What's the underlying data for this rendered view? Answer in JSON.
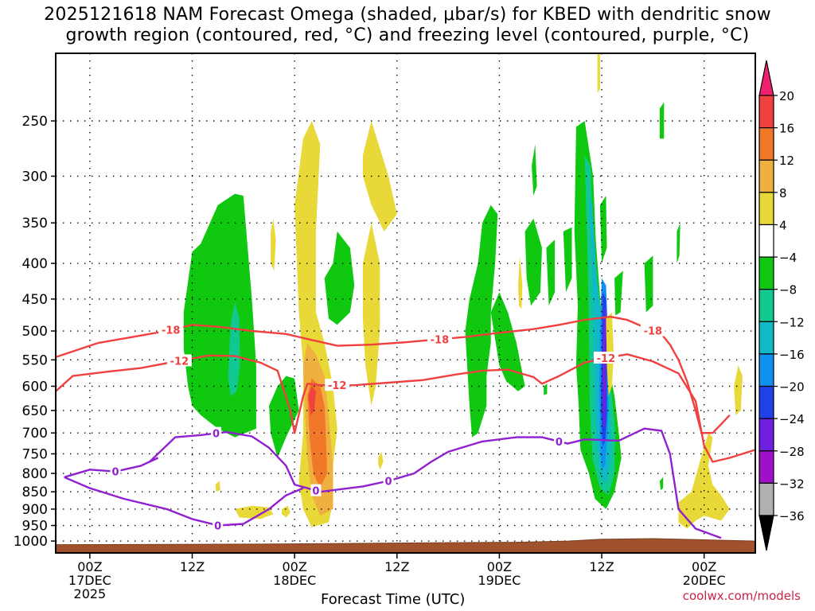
{
  "title_line1": "2025121618 NAM Forecast Omega (shaded, μbar/s) for KBED with dendritic snow",
  "title_line2": "growth region (contoured, red, °C) and freezing level (contoured, purple, °C)",
  "watermark": "coolwx.com/models",
  "chart_data": {
    "type": "heatmap",
    "xlabel": "Forecast Time (UTC)",
    "ylabel": "",
    "y_ticks": [
      250,
      300,
      350,
      400,
      450,
      500,
      550,
      600,
      650,
      700,
      750,
      800,
      850,
      900,
      950,
      1000
    ],
    "y_scale": "log",
    "y_range": [
      200,
      1040
    ],
    "y_reversed": true,
    "x_range_hours": [
      -4,
      78
    ],
    "x_ticks": [
      {
        "hour": 0,
        "lines": [
          "00Z",
          "17DEC",
          "2025"
        ]
      },
      {
        "hour": 12,
        "lines": [
          "12Z"
        ]
      },
      {
        "hour": 24,
        "lines": [
          "00Z",
          "18DEC"
        ]
      },
      {
        "hour": 36,
        "lines": [
          "12Z"
        ]
      },
      {
        "hour": 48,
        "lines": [
          "00Z",
          "19DEC"
        ]
      },
      {
        "hour": 60,
        "lines": [
          "12Z"
        ]
      },
      {
        "hour": 72,
        "lines": [
          "00Z",
          "20DEC"
        ]
      }
    ],
    "grid": true,
    "colorbar": {
      "labels": [
        "20",
        "16",
        "12",
        "8",
        "4",
        "−4",
        "−8",
        "−12",
        "−16",
        "−20",
        "−24",
        "−28",
        "−32",
        "−36"
      ],
      "colors": [
        "#f02070",
        "#f04040",
        "#f07828",
        "#f0b040",
        "#e8d838",
        "#ffffff",
        "#10c810",
        "#10c890",
        "#10b8c8",
        "#1090f0",
        "#2040e8",
        "#7020e0",
        "#a010c8",
        "#b0b0b0",
        "#000000"
      ]
    },
    "contours": [
      {
        "name": "dendritic -18",
        "label": "-18",
        "color": "#f04040",
        "points": [
          [
            -4,
            545
          ],
          [
            1,
            520
          ],
          [
            5,
            510
          ],
          [
            9,
            500
          ],
          [
            12,
            490
          ],
          [
            15,
            493
          ],
          [
            19,
            500
          ],
          [
            23,
            505
          ],
          [
            26,
            515
          ],
          [
            29,
            525
          ],
          [
            33,
            523
          ],
          [
            37,
            519
          ],
          [
            40,
            515
          ],
          [
            44,
            510
          ],
          [
            48,
            503
          ],
          [
            52,
            497
          ],
          [
            55,
            490
          ],
          [
            58,
            482
          ],
          [
            61,
            477
          ],
          [
            63,
            482
          ],
          [
            65,
            494
          ],
          [
            67,
            505
          ],
          [
            68,
            523
          ],
          [
            69,
            550
          ],
          [
            70,
            590
          ],
          [
            71,
            650
          ],
          [
            71.7,
            700
          ],
          [
            73,
            700
          ],
          [
            74,
            680
          ],
          [
            75,
            660
          ]
        ]
      },
      {
        "name": "dendritic -12",
        "label": "-12",
        "color": "#f04040",
        "points": [
          [
            -4,
            610
          ],
          [
            -2,
            580
          ],
          [
            2,
            572
          ],
          [
            6,
            565
          ],
          [
            10,
            553
          ],
          [
            14,
            542
          ],
          [
            17,
            543
          ],
          [
            20,
            555
          ],
          [
            22,
            570
          ],
          [
            23.5,
            650
          ],
          [
            24,
            700
          ],
          [
            25,
            620
          ],
          [
            25.5,
            595
          ],
          [
            27,
            598
          ],
          [
            31,
            598
          ],
          [
            35,
            593
          ],
          [
            39,
            588
          ],
          [
            43,
            577
          ],
          [
            46,
            570
          ],
          [
            49,
            568
          ],
          [
            52,
            582
          ],
          [
            53,
            595
          ],
          [
            55,
            580
          ],
          [
            58,
            555
          ],
          [
            61,
            545
          ],
          [
            63,
            540
          ],
          [
            66,
            553
          ],
          [
            69,
            575
          ],
          [
            71,
            630
          ],
          [
            72,
            730
          ],
          [
            73,
            770
          ],
          [
            75,
            760
          ],
          [
            78,
            740
          ]
        ]
      },
      {
        "name": "freezing level 0",
        "label": "0",
        "color": "#9020d0",
        "points": [
          [
            7,
            770
          ],
          [
            10,
            710
          ],
          [
            13,
            705
          ],
          [
            16,
            698
          ],
          [
            19,
            708
          ],
          [
            21,
            735
          ],
          [
            23,
            780
          ],
          [
            24,
            830
          ],
          [
            27,
            850
          ],
          [
            32,
            835
          ],
          [
            35,
            820
          ],
          [
            38,
            800
          ],
          [
            40,
            770
          ],
          [
            42,
            745
          ],
          [
            46,
            720
          ],
          [
            50,
            710
          ],
          [
            53,
            710
          ],
          [
            56,
            725
          ],
          [
            58,
            715
          ],
          [
            62,
            718
          ],
          [
            65,
            690
          ],
          [
            67,
            695
          ],
          [
            68,
            750
          ],
          [
            69,
            900
          ],
          [
            71,
            960
          ],
          [
            74,
            990
          ]
        ]
      },
      {
        "name": "freezing level 0 (lower)",
        "label": "0",
        "color": "#9020d0",
        "points": [
          [
            -3,
            810
          ],
          [
            0,
            790
          ],
          [
            3,
            795
          ],
          [
            6,
            780
          ],
          [
            8,
            760
          ]
        ]
      },
      {
        "name": "freezing level 0 (lower loop)",
        "label": "0",
        "color": "#9020d0",
        "points": [
          [
            -3,
            810
          ],
          [
            0,
            840
          ],
          [
            4,
            870
          ],
          [
            9,
            900
          ],
          [
            12,
            930
          ],
          [
            15,
            950
          ],
          [
            18,
            945
          ],
          [
            21,
            900
          ],
          [
            23,
            860
          ],
          [
            25,
            840
          ]
        ]
      }
    ]
  }
}
